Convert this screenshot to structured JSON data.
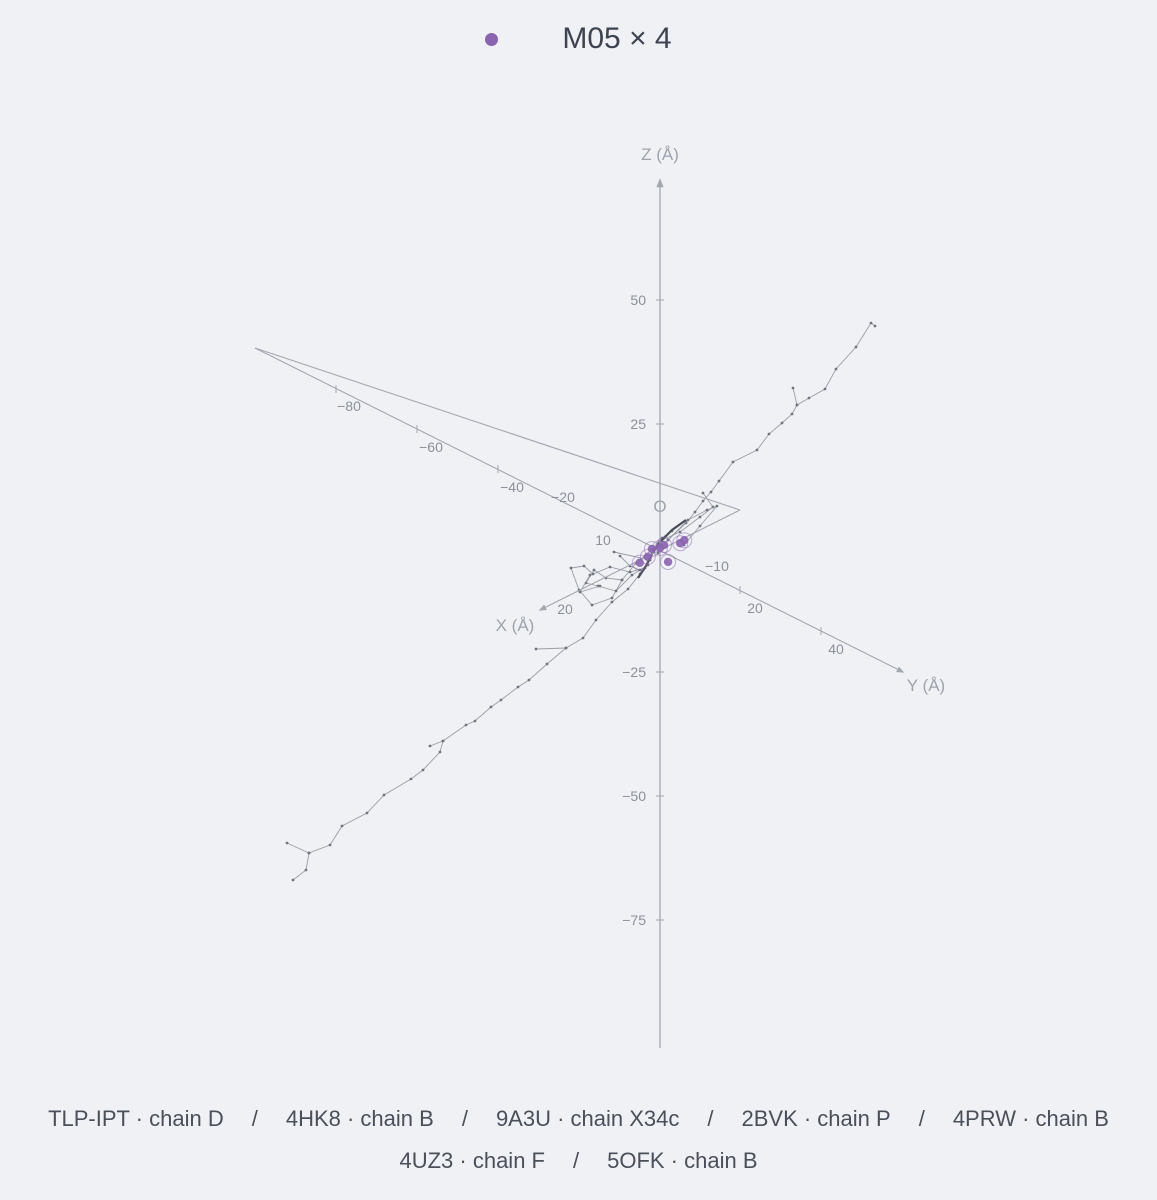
{
  "legend": {
    "label": "M05 × 4",
    "color": "#8b63b0"
  },
  "footer": {
    "row1": [
      "TLP-IPT · chain D",
      "4HK8 · chain B",
      "9A3U · chain X34c",
      "2BVK · chain P",
      "4PRW · chain B"
    ],
    "row2": [
      "4UZ3 · chain F",
      "5OFK · chain B"
    ],
    "separator": "/"
  },
  "chart_data": {
    "type": "scatter",
    "projection": "3d",
    "axes": {
      "x": {
        "label": "X (Å)",
        "ticks": [
          -80,
          -60,
          -40,
          -20,
          10,
          20
        ]
      },
      "y": {
        "label": "Y (Å)",
        "ticks": [
          -10,
          20,
          40
        ]
      },
      "z": {
        "label": "Z (Å)",
        "ticks": [
          50,
          25,
          -25,
          -50,
          -75
        ]
      },
      "origin_label": "O"
    },
    "colors": {
      "axis": "#a3a7b1",
      "trace": "#8f939c",
      "point": "#8b63b0"
    },
    "series": [
      {
        "name": "M05 × 4",
        "points": [
          [
            0,
            1,
            1
          ],
          [
            0,
            2,
            -2
          ],
          [
            -1,
            5,
            4
          ],
          [
            1,
            -1,
            -1
          ],
          [
            2,
            -3,
            -5
          ],
          [
            1,
            -2,
            -3
          ],
          [
            0,
            0,
            0
          ],
          [
            -1,
            4,
            3
          ]
        ]
      }
    ]
  }
}
